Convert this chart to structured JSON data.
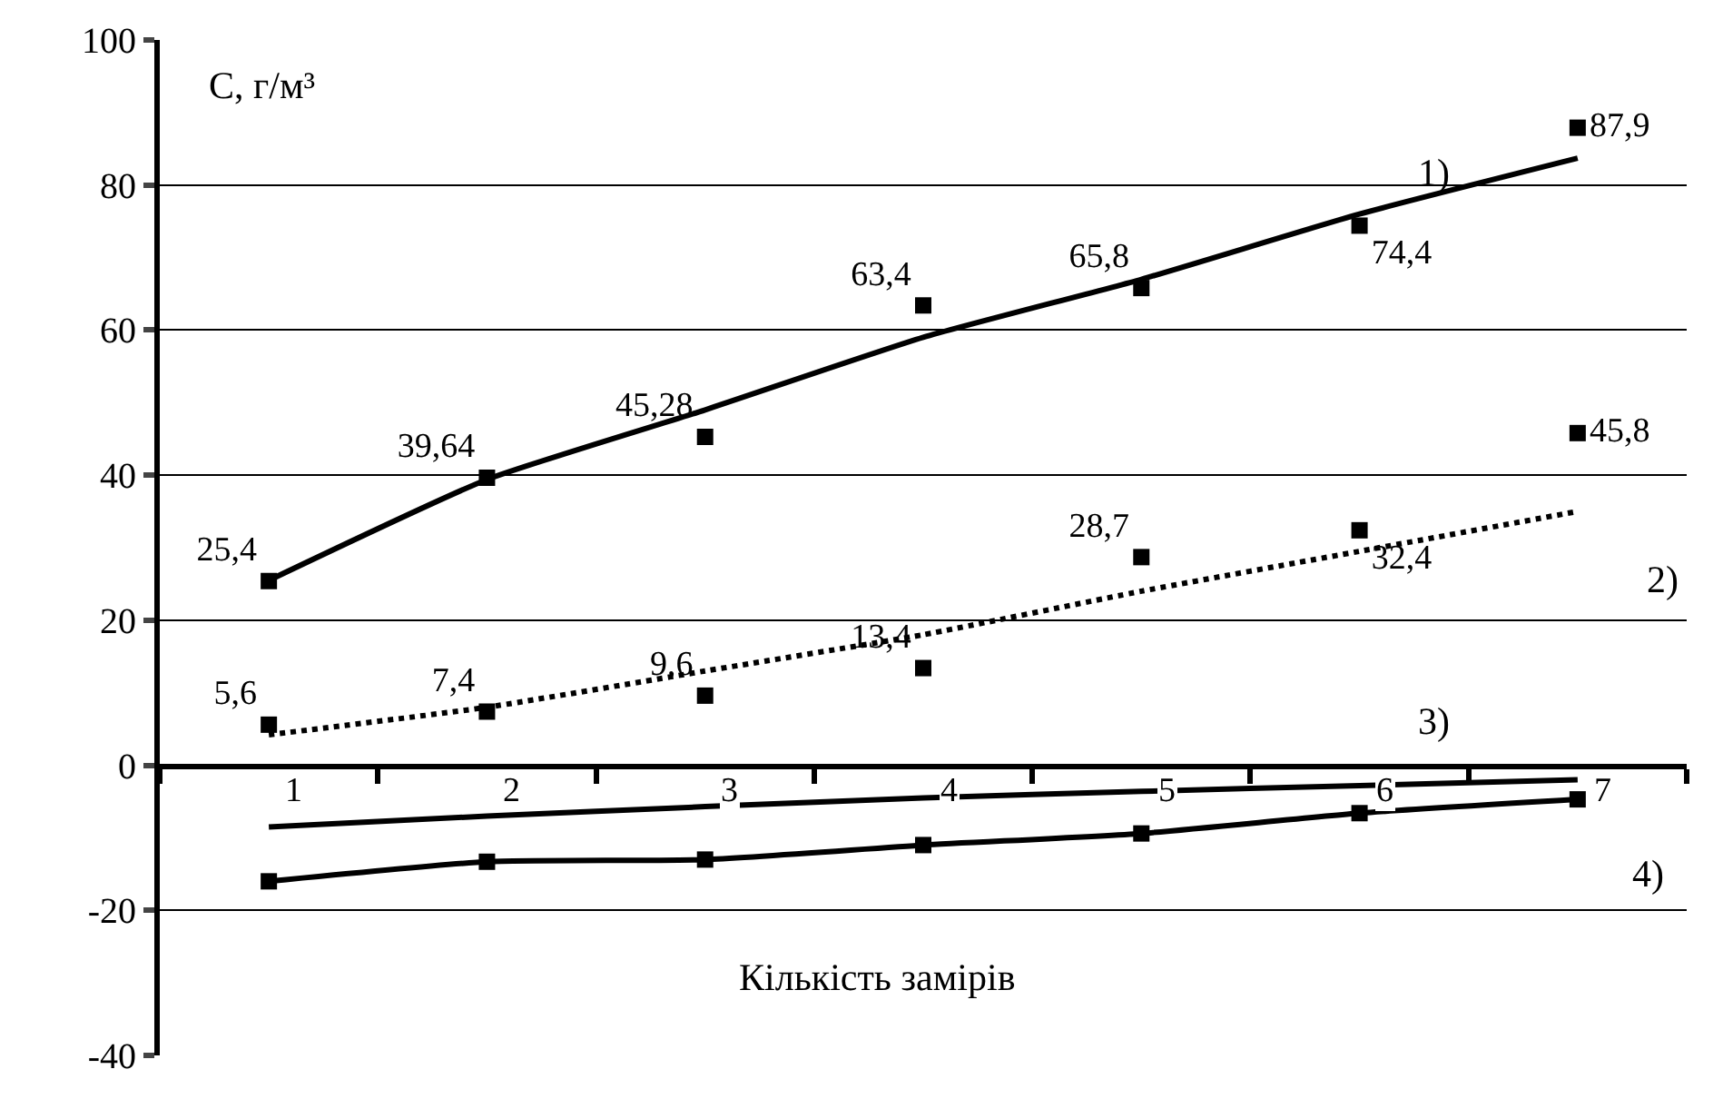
{
  "chart_data": {
    "type": "scatter",
    "ylabel": "C, г/м³",
    "xlabel": "Кількість замірів",
    "categories": [
      "1",
      "2",
      "3",
      "4",
      "5",
      "6",
      "7"
    ],
    "ylim": [
      -40,
      100
    ],
    "yticks": [
      -40,
      -20,
      0,
      20,
      40,
      60,
      80,
      100
    ],
    "grid": "y",
    "series": [
      {
        "color": "#000000",
        "marker": "square",
        "values": [
          25.4,
          39.64,
          45.28,
          63.4,
          65.8,
          74.4,
          87.9
        ],
        "value_labels": [
          "25,4",
          "39,64",
          "45,28",
          "63,4",
          "65,8",
          "74,4",
          "87,9"
        ]
      },
      {
        "type": "line",
        "color": "#000000",
        "line_style": "solid",
        "marker": "none",
        "values": [
          25.5,
          39.4,
          49,
          59,
          67,
          76,
          83.7
        ]
      },
      {
        "color": "#000000",
        "marker": "square",
        "values": [
          5.6,
          7.4,
          9.6,
          13.4,
          28.7,
          32.4,
          45.8
        ],
        "value_labels": [
          "5,6",
          "7,4",
          "9,6",
          "13,4",
          "28,7",
          "32,4",
          "45,8"
        ]
      },
      {
        "type": "line",
        "color": "#000000",
        "line_style": "dotted",
        "marker": "none",
        "values": [
          4.2,
          8,
          13,
          18,
          24,
          29.5,
          35
        ]
      },
      {
        "type": "line",
        "color": "#000000",
        "line_style": "solid",
        "marker": "none",
        "values": [
          -8.5,
          -7,
          -5.7,
          -4.5,
          -3.6,
          -2.8,
          -2
        ]
      },
      {
        "type": "line",
        "color": "#000000",
        "line_style": "solid",
        "marker": "square",
        "values": [
          -16,
          -13.3,
          -13,
          -11,
          -9.4,
          -6.6,
          -4.7
        ]
      }
    ],
    "annotations": [
      "1)",
      "2)",
      "3)",
      "4)"
    ]
  }
}
